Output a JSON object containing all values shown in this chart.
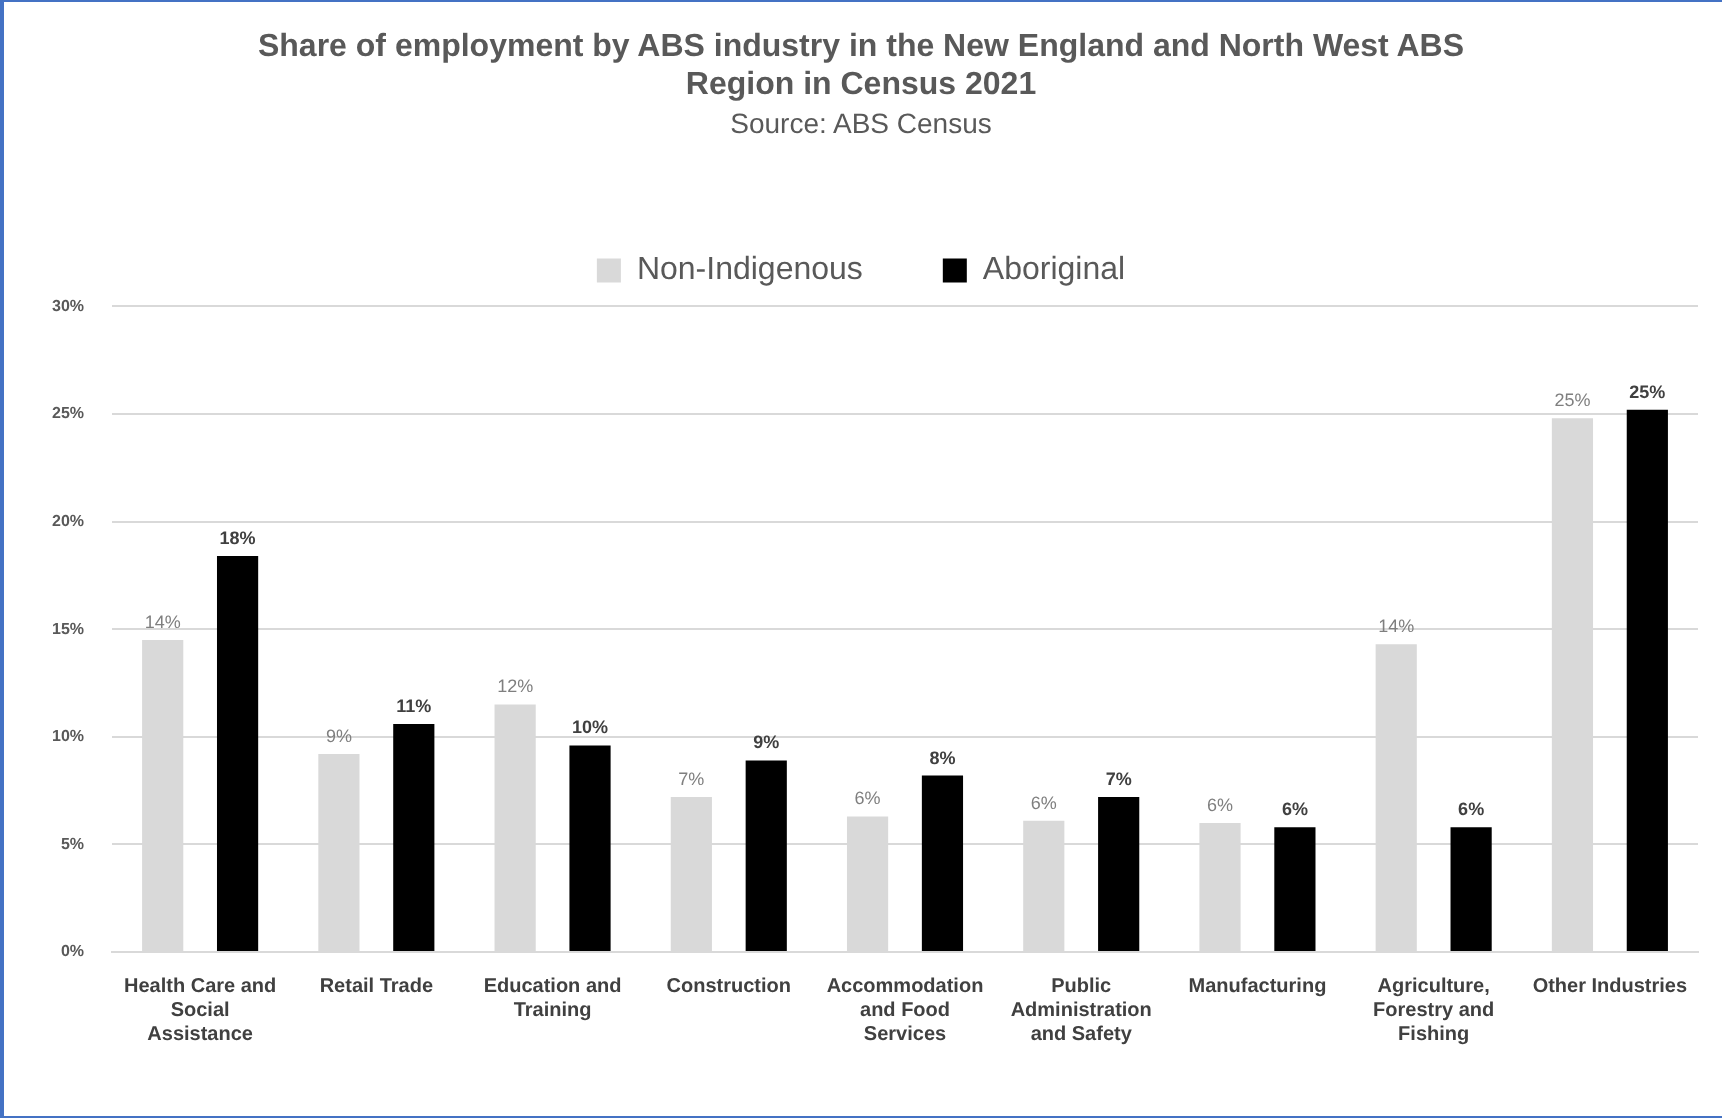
{
  "chart_data": {
    "type": "bar",
    "title": "Share of employment by ABS industry in the New England and North West ABS Region in Census 2021",
    "subtitle": "Source: ABS Census",
    "categories": [
      "Health Care and Social Assistance",
      "Retail Trade",
      "Education and Training",
      "Construction",
      "Accommodation and Food Services",
      "Public Administration and Safety",
      "Manufacturing",
      "Agriculture, Forestry and Fishing",
      "Other Industries"
    ],
    "series": [
      {
        "name": "Non-Indigenous",
        "color": "#d9d9d9",
        "values": [
          14.5,
          9.2,
          11.5,
          7.2,
          6.3,
          6.1,
          6.0,
          14.3,
          24.8
        ],
        "value_labels": [
          "14%",
          "9%",
          "12%",
          "7%",
          "6%",
          "6%",
          "6%",
          "14%",
          "25%"
        ]
      },
      {
        "name": "Aboriginal",
        "color": "#000000",
        "values": [
          18.4,
          10.6,
          9.6,
          8.9,
          8.2,
          7.2,
          5.8,
          5.8,
          25.2
        ],
        "value_labels": [
          "18%",
          "11%",
          "10%",
          "9%",
          "8%",
          "7%",
          "6%",
          "6%",
          "25%"
        ]
      }
    ],
    "ylim": [
      0,
      30
    ],
    "yticks": [
      {
        "value": 0,
        "label": "0%"
      },
      {
        "value": 5,
        "label": "5%"
      },
      {
        "value": 10,
        "label": "10%"
      },
      {
        "value": 15,
        "label": "15%"
      },
      {
        "value": 20,
        "label": "20%"
      },
      {
        "value": 25,
        "label": "25%"
      },
      {
        "value": 30,
        "label": "30%"
      }
    ],
    "grid": "y",
    "legend": "top"
  }
}
